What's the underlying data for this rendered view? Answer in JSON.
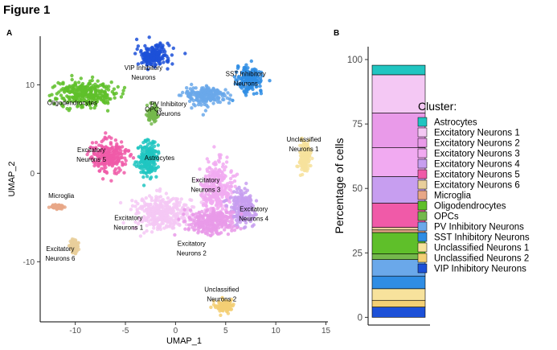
{
  "figure_title": "Figure 1",
  "panel_a_label": "A",
  "panel_b_label": "B",
  "colors": {
    "Astrocytes": "#20c5c1",
    "Excitatory Neurons 1": "#f4c8f4",
    "Excitatory Neurons 2": "#e99ae9",
    "Excitatory Neurons 3": "#f1aaf1",
    "Excitatory Neurons 4": "#c79ef0",
    "Excitatory Neurons 5": "#f05aa8",
    "Excitatory Neurons 6": "#e9cf9b",
    "Microglia": "#e8a787",
    "Oligodendrocytes": "#5fbf2a",
    "OPCs": "#74b84c",
    "PV Inhibitory Neurons": "#6aa8ea",
    "SST Inhibitory Neurons": "#2f8de4",
    "Unclassified Neurons 1": "#f7e29c",
    "Unclassified Neurons 2": "#f3cf74",
    "VIP Inhibitory Neurons": "#1c50d8"
  },
  "chart_data": [
    {
      "type": "scatter",
      "xlabel": "UMAP_1",
      "ylabel": "UMAP_2",
      "xlim": [
        -13.5,
        15.2
      ],
      "ylim": [
        -16.8,
        15.5
      ],
      "xticks": [
        -10,
        -5,
        0,
        5,
        10,
        15
      ],
      "yticks": [
        -10,
        0,
        10
      ],
      "clusters": [
        {
          "name": "VIP Inhibitory Neurons",
          "center": [
            -2.2,
            13.3
          ],
          "spread": [
            1.8,
            1.4
          ],
          "label_lines": [
            "VIP Inhibitory",
            "Neurons"
          ],
          "label_at": [
            -3.2,
            11.7
          ]
        },
        {
          "name": "SST Inhibitory Neurons",
          "center": [
            7.4,
            10.6
          ],
          "spread": [
            1.4,
            1.5
          ],
          "label_lines": [
            "SST Inhibitory",
            "Neurons"
          ],
          "label_at": [
            7.0,
            11.0
          ]
        },
        {
          "name": "PV Inhibitory Neurons",
          "center": [
            3.0,
            8.8
          ],
          "spread": [
            2.4,
            1.2
          ],
          "label_lines": [
            "PV Inhibitory",
            "Neurons"
          ],
          "label_at": [
            -0.7,
            7.6
          ]
        },
        {
          "name": "Oligodendrocytes",
          "center": [
            -9.0,
            9.0
          ],
          "spread": [
            3.2,
            1.6
          ],
          "label_lines": [
            "Oligodendrocytes"
          ],
          "label_at": [
            -10.3,
            7.7
          ]
        },
        {
          "name": "OPCs",
          "center": [
            -2.3,
            6.7
          ],
          "spread": [
            0.6,
            0.9
          ],
          "label_lines": [
            "OPCs"
          ],
          "label_at": [
            -2.2,
            7.0
          ]
        },
        {
          "name": "Unclassified Neurons 1",
          "center": [
            12.9,
            1.8
          ],
          "spread": [
            0.6,
            2.0
          ],
          "label_lines": [
            "Unclassified",
            "Neurons 1"
          ],
          "label_at": [
            12.8,
            3.6
          ]
        },
        {
          "name": "Excitatory Neurons 5",
          "center": [
            -6.7,
            2.0
          ],
          "spread": [
            1.9,
            2.0
          ],
          "label_lines": [
            "Excitatory",
            "Neurons 5"
          ],
          "label_at": [
            -8.4,
            2.4
          ]
        },
        {
          "name": "Astrocytes",
          "center": [
            -2.7,
            1.6
          ],
          "spread": [
            1.2,
            2.2
          ],
          "label_lines": [
            "Astrocytes"
          ],
          "label_at": [
            -1.6,
            1.5
          ]
        },
        {
          "name": "Excitatory Neurons 3",
          "center": [
            4.2,
            -1.8
          ],
          "spread": [
            1.7,
            3.2
          ],
          "label_lines": [
            "Excitatory",
            "Neurons 3"
          ],
          "label_at": [
            3.0,
            -1.0
          ]
        },
        {
          "name": "Excitatory Neurons 4",
          "center": [
            6.7,
            -4.0
          ],
          "spread": [
            1.3,
            2.2
          ],
          "label_lines": [
            "Excitatory",
            "Neurons 4"
          ],
          "label_at": [
            7.8,
            -4.3
          ]
        },
        {
          "name": "Excitatory Neurons 1",
          "center": [
            -1.5,
            -4.5
          ],
          "spread": [
            3.0,
            2.2
          ],
          "label_lines": [
            "Excitatory",
            "Neurons 1"
          ],
          "label_at": [
            -4.7,
            -5.3
          ]
        },
        {
          "name": "Excitatory Neurons 2",
          "center": [
            3.4,
            -5.6
          ],
          "spread": [
            2.6,
            1.6
          ],
          "label_lines": [
            "Excitatory",
            "Neurons 2"
          ],
          "label_at": [
            1.6,
            -8.2
          ]
        },
        {
          "name": "Microglia",
          "center": [
            -11.8,
            -3.8
          ],
          "spread": [
            0.7,
            0.2
          ],
          "label_lines": [
            "Microglia"
          ],
          "label_at": [
            -11.4,
            -2.8
          ]
        },
        {
          "name": "Excitatory Neurons 6",
          "center": [
            -10.1,
            -8.3
          ],
          "spread": [
            0.4,
            0.8
          ],
          "label_lines": [
            "Excitatory",
            "Neurons 6"
          ],
          "label_at": [
            -11.5,
            -8.8
          ]
        },
        {
          "name": "Unclassified Neurons 2",
          "center": [
            4.8,
            -15.0
          ],
          "spread": [
            0.9,
            0.7
          ],
          "label_lines": [
            "Unclassified",
            "Neurons 2"
          ],
          "label_at": [
            4.6,
            -13.4
          ]
        }
      ]
    },
    {
      "type": "bar",
      "stacked": true,
      "ylabel": "Percentage of cells",
      "ylim": [
        -3,
        105
      ],
      "yticks": [
        0,
        25,
        50,
        75,
        100
      ],
      "legend_title": "Cluster:",
      "legend_position": "right",
      "segments": [
        {
          "name": "Astrocytes",
          "value": 3.7
        },
        {
          "name": "Excitatory Neurons 1",
          "value": 14.8
        },
        {
          "name": "Excitatory Neurons 2",
          "value": 13.5
        },
        {
          "name": "Excitatory Neurons 3",
          "value": 11.2
        },
        {
          "name": "Excitatory Neurons 4",
          "value": 10.3
        },
        {
          "name": "Excitatory Neurons 5",
          "value": 9.4
        },
        {
          "name": "Excitatory Neurons 6",
          "value": 1.0
        },
        {
          "name": "Microglia",
          "value": 1.0
        },
        {
          "name": "Oligodendrocytes",
          "value": 8.3
        },
        {
          "name": "OPCs",
          "value": 2.2
        },
        {
          "name": "PV Inhibitory Neurons",
          "value": 6.4
        },
        {
          "name": "SST Inhibitory Neurons",
          "value": 4.9
        },
        {
          "name": "Unclassified Neurons 1",
          "value": 4.5
        },
        {
          "name": "Unclassified Neurons 2",
          "value": 2.6
        },
        {
          "name": "VIP Inhibitory Neurons",
          "value": 4.0
        }
      ]
    }
  ]
}
